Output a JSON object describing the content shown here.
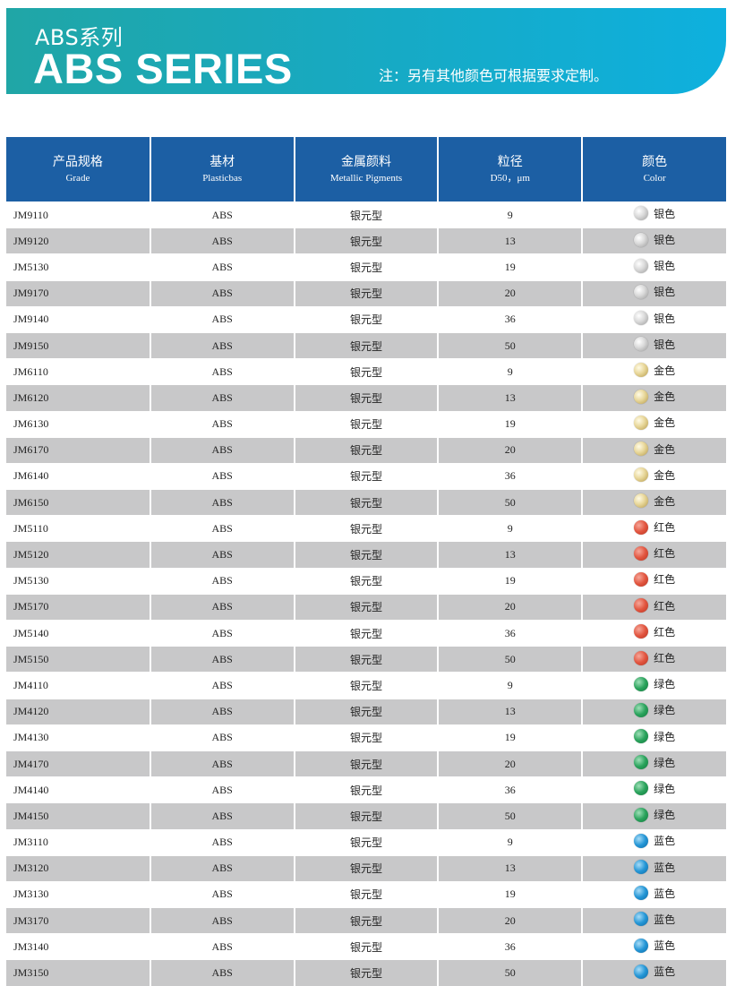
{
  "header": {
    "subtitle": "ABS系列",
    "title": "ABS SERIES",
    "note": "注：另有其他颜色可根据要求定制。"
  },
  "table": {
    "columns": [
      {
        "zh": "产品规格",
        "en": "Grade"
      },
      {
        "zh": "基材",
        "en": "Plasticbas"
      },
      {
        "zh": "金属颜料",
        "en": "Metallic Pigments"
      },
      {
        "zh": "粒径",
        "en": "D50，μm"
      },
      {
        "zh": "颜色",
        "en": "Color"
      }
    ],
    "rows": [
      {
        "grade": "JM9110",
        "base": "ABS",
        "pigment": "银元型",
        "d50": "9",
        "color": "银色",
        "swatch": "silver"
      },
      {
        "grade": "JM9120",
        "base": "ABS",
        "pigment": "银元型",
        "d50": "13",
        "color": "银色",
        "swatch": "silver"
      },
      {
        "grade": "JM5130",
        "base": "ABS",
        "pigment": "银元型",
        "d50": "19",
        "color": "银色",
        "swatch": "silver"
      },
      {
        "grade": "JM9170",
        "base": "ABS",
        "pigment": "银元型",
        "d50": "20",
        "color": "银色",
        "swatch": "silver"
      },
      {
        "grade": "JM9140",
        "base": "ABS",
        "pigment": "银元型",
        "d50": "36",
        "color": "银色",
        "swatch": "silver"
      },
      {
        "grade": "JM9150",
        "base": "ABS",
        "pigment": "银元型",
        "d50": "50",
        "color": "银色",
        "swatch": "silver"
      },
      {
        "grade": "JM6110",
        "base": "ABS",
        "pigment": "银元型",
        "d50": "9",
        "color": "金色",
        "swatch": "gold"
      },
      {
        "grade": "JM6120",
        "base": "ABS",
        "pigment": "银元型",
        "d50": "13",
        "color": "金色",
        "swatch": "gold"
      },
      {
        "grade": "JM6130",
        "base": "ABS",
        "pigment": "银元型",
        "d50": "19",
        "color": "金色",
        "swatch": "gold"
      },
      {
        "grade": "JM6170",
        "base": "ABS",
        "pigment": "银元型",
        "d50": "20",
        "color": "金色",
        "swatch": "gold"
      },
      {
        "grade": "JM6140",
        "base": "ABS",
        "pigment": "银元型",
        "d50": "36",
        "color": "金色",
        "swatch": "gold"
      },
      {
        "grade": "JM6150",
        "base": "ABS",
        "pigment": "银元型",
        "d50": "50",
        "color": "金色",
        "swatch": "gold"
      },
      {
        "grade": "JM5110",
        "base": "ABS",
        "pigment": "银元型",
        "d50": "9",
        "color": "红色",
        "swatch": "red"
      },
      {
        "grade": "JM5120",
        "base": "ABS",
        "pigment": "银元型",
        "d50": "13",
        "color": "红色",
        "swatch": "red"
      },
      {
        "grade": "JM5130",
        "base": "ABS",
        "pigment": "银元型",
        "d50": "19",
        "color": "红色",
        "swatch": "red"
      },
      {
        "grade": "JM5170",
        "base": "ABS",
        "pigment": "银元型",
        "d50": "20",
        "color": "红色",
        "swatch": "red"
      },
      {
        "grade": "JM5140",
        "base": "ABS",
        "pigment": "银元型",
        "d50": "36",
        "color": "红色",
        "swatch": "red"
      },
      {
        "grade": "JM5150",
        "base": "ABS",
        "pigment": "银元型",
        "d50": "50",
        "color": "红色",
        "swatch": "red"
      },
      {
        "grade": "JM4110",
        "base": "ABS",
        "pigment": "银元型",
        "d50": "9",
        "color": "绿色",
        "swatch": "green"
      },
      {
        "grade": "JM4120",
        "base": "ABS",
        "pigment": "银元型",
        "d50": "13",
        "color": "绿色",
        "swatch": "green"
      },
      {
        "grade": "JM4130",
        "base": "ABS",
        "pigment": "银元型",
        "d50": "19",
        "color": "绿色",
        "swatch": "green"
      },
      {
        "grade": "JM4170",
        "base": "ABS",
        "pigment": "银元型",
        "d50": "20",
        "color": "绿色",
        "swatch": "green"
      },
      {
        "grade": "JM4140",
        "base": "ABS",
        "pigment": "银元型",
        "d50": "36",
        "color": "绿色",
        "swatch": "green"
      },
      {
        "grade": "JM4150",
        "base": "ABS",
        "pigment": "银元型",
        "d50": "50",
        "color": "绿色",
        "swatch": "green"
      },
      {
        "grade": "JM3110",
        "base": "ABS",
        "pigment": "银元型",
        "d50": "9",
        "color": "蓝色",
        "swatch": "blue"
      },
      {
        "grade": "JM3120",
        "base": "ABS",
        "pigment": "银元型",
        "d50": "13",
        "color": "蓝色",
        "swatch": "blue"
      },
      {
        "grade": "JM3130",
        "base": "ABS",
        "pigment": "银元型",
        "d50": "19",
        "color": "蓝色",
        "swatch": "blue"
      },
      {
        "grade": "JM3170",
        "base": "ABS",
        "pigment": "银元型",
        "d50": "20",
        "color": "蓝色",
        "swatch": "blue"
      },
      {
        "grade": "JM3140",
        "base": "ABS",
        "pigment": "银元型",
        "d50": "36",
        "color": "蓝色",
        "swatch": "blue"
      },
      {
        "grade": "JM3150",
        "base": "ABS",
        "pigment": "银元型",
        "d50": "50",
        "color": "蓝色",
        "swatch": "blue"
      }
    ]
  },
  "colors": {
    "header_bg": "#1c5fa4",
    "banner_start": "#20a6a6",
    "banner_end": "#0eb0de",
    "stripe": "#c8c8c9"
  }
}
